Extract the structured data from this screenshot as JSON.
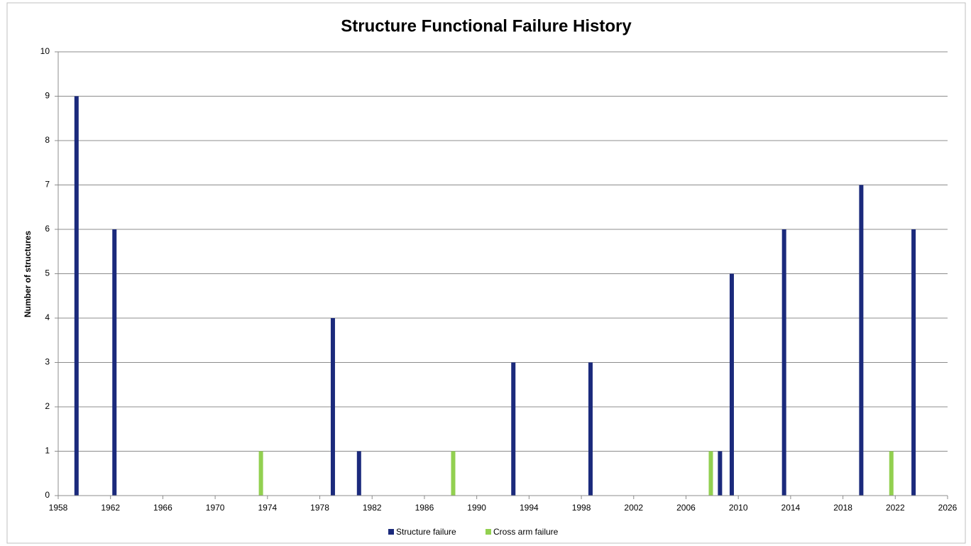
{
  "chart_data": {
    "type": "bar",
    "title": "Structure Functional Failure History",
    "y_label": "Number of structures",
    "xlim": [
      1958,
      2026
    ],
    "xticks": [
      1958,
      1962,
      1966,
      1970,
      1974,
      1978,
      1982,
      1986,
      1990,
      1994,
      1998,
      2002,
      2006,
      2010,
      2014,
      2018,
      2022,
      2026
    ],
    "ylim": [
      0,
      10
    ],
    "yticks": [
      0,
      1,
      2,
      3,
      4,
      5,
      6,
      7,
      8,
      9,
      10
    ],
    "grid": true,
    "legend": "bottom",
    "series": [
      {
        "name": "Structure failure",
        "color": "#1b2a7c",
        "x": [
          1959.4,
          1962.3,
          1979.0,
          1981.0,
          1992.8,
          1998.7,
          2008.6,
          2009.5,
          2013.5,
          2019.4,
          2023.4
        ],
        "values": [
          9,
          6,
          4,
          1,
          3,
          3,
          1,
          5,
          6,
          7,
          6
        ]
      },
      {
        "name": "Cross arm failure",
        "color": "#92d050",
        "x": [
          1973.5,
          1988.2,
          2007.9,
          2021.7
        ],
        "values": [
          1,
          1,
          1,
          1
        ]
      }
    ]
  }
}
